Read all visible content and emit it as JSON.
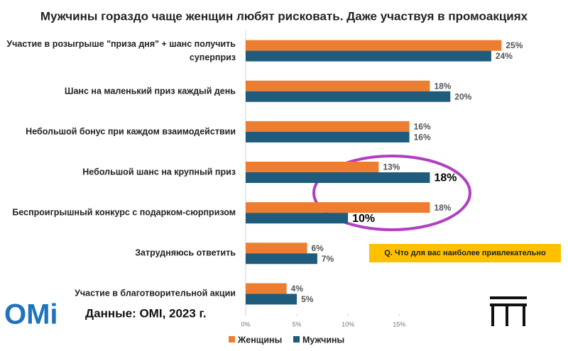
{
  "chart_data": {
    "type": "barh",
    "title": "Мужчины гораздо чаще женщин любят рисковать. Даже участвуя в промоакциях",
    "categories": [
      "Участие в розыгрыше \"приза дня\" + шанс получить суперприз",
      "Шанс на маленький приз каждый день",
      "Небольшой бонус при каждом взаимодействии",
      "Небольшой шанс на крупный приз",
      "Беспроигрышный конкурс с подарком-сюрпризом",
      "Затрудняюсь ответить",
      "Участие в благотворительной акции"
    ],
    "series": [
      {
        "name": "Женщины",
        "color": "#ED7D31",
        "values": [
          25,
          18,
          16,
          13,
          18,
          6,
          4
        ],
        "value_labels": [
          "25%",
          "18%",
          "16%",
          "13%",
          "18%",
          "6%",
          "4%"
        ]
      },
      {
        "name": "Мужчины",
        "color": "#1F5B7C",
        "values": [
          24,
          20,
          16,
          18,
          10,
          7,
          5
        ],
        "value_labels": [
          "24%",
          "20%",
          "16%",
          "18%",
          "10%",
          "7%",
          "5%"
        ]
      }
    ],
    "xlim": [
      0,
      29
    ],
    "xticks": [
      {
        "value": 0,
        "label": "0%"
      },
      {
        "value": 5,
        "label": "5%"
      },
      {
        "value": 10,
        "label": "10%"
      },
      {
        "value": 15,
        "label": "15%"
      }
    ],
    "annotations": [
      "Q. Что для вас наиболее привлекательно",
      "Данные: OMI, 2023 г."
    ],
    "logo": "OMi"
  }
}
